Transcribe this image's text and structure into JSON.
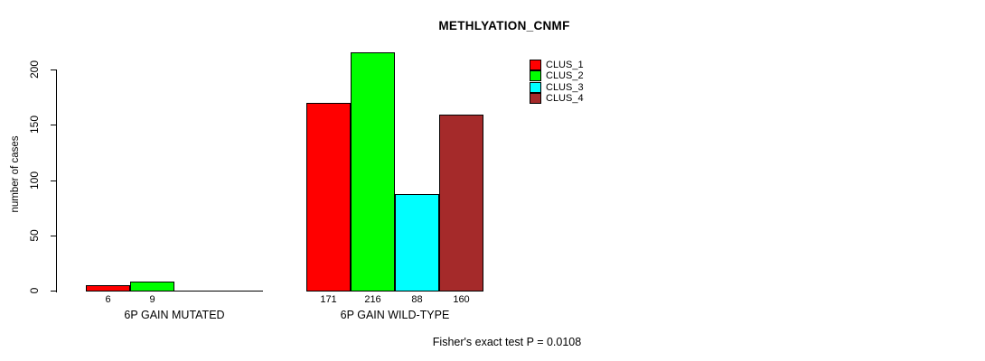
{
  "chart_data": {
    "type": "bar",
    "title": "METHLYATION_CNMF",
    "ylabel": "number of cases",
    "xlabel": "",
    "ylim": [
      0,
      200
    ],
    "yticks": [
      0,
      50,
      100,
      150,
      200
    ],
    "grid": false,
    "legend_position": "top-right-outside",
    "categories": [
      "6P GAIN MUTATED",
      "6P GAIN WILD-TYPE"
    ],
    "series": [
      {
        "name": "CLUS_1",
        "color": "#FF0000",
        "values": [
          6,
          171
        ]
      },
      {
        "name": "CLUS_2",
        "color": "#00FF00",
        "values": [
          9,
          216
        ]
      },
      {
        "name": "CLUS_3",
        "color": "#00FFFF",
        "values": [
          0,
          88
        ]
      },
      {
        "name": "CLUS_4",
        "color": "#A52A2A",
        "values": [
          0,
          160
        ]
      }
    ],
    "bar_value_labels": [
      [
        "6",
        "9",
        "",
        ""
      ],
      [
        "171",
        "216",
        "88",
        "160"
      ]
    ],
    "annotation": "Fisher's exact test P = 0.0108"
  }
}
